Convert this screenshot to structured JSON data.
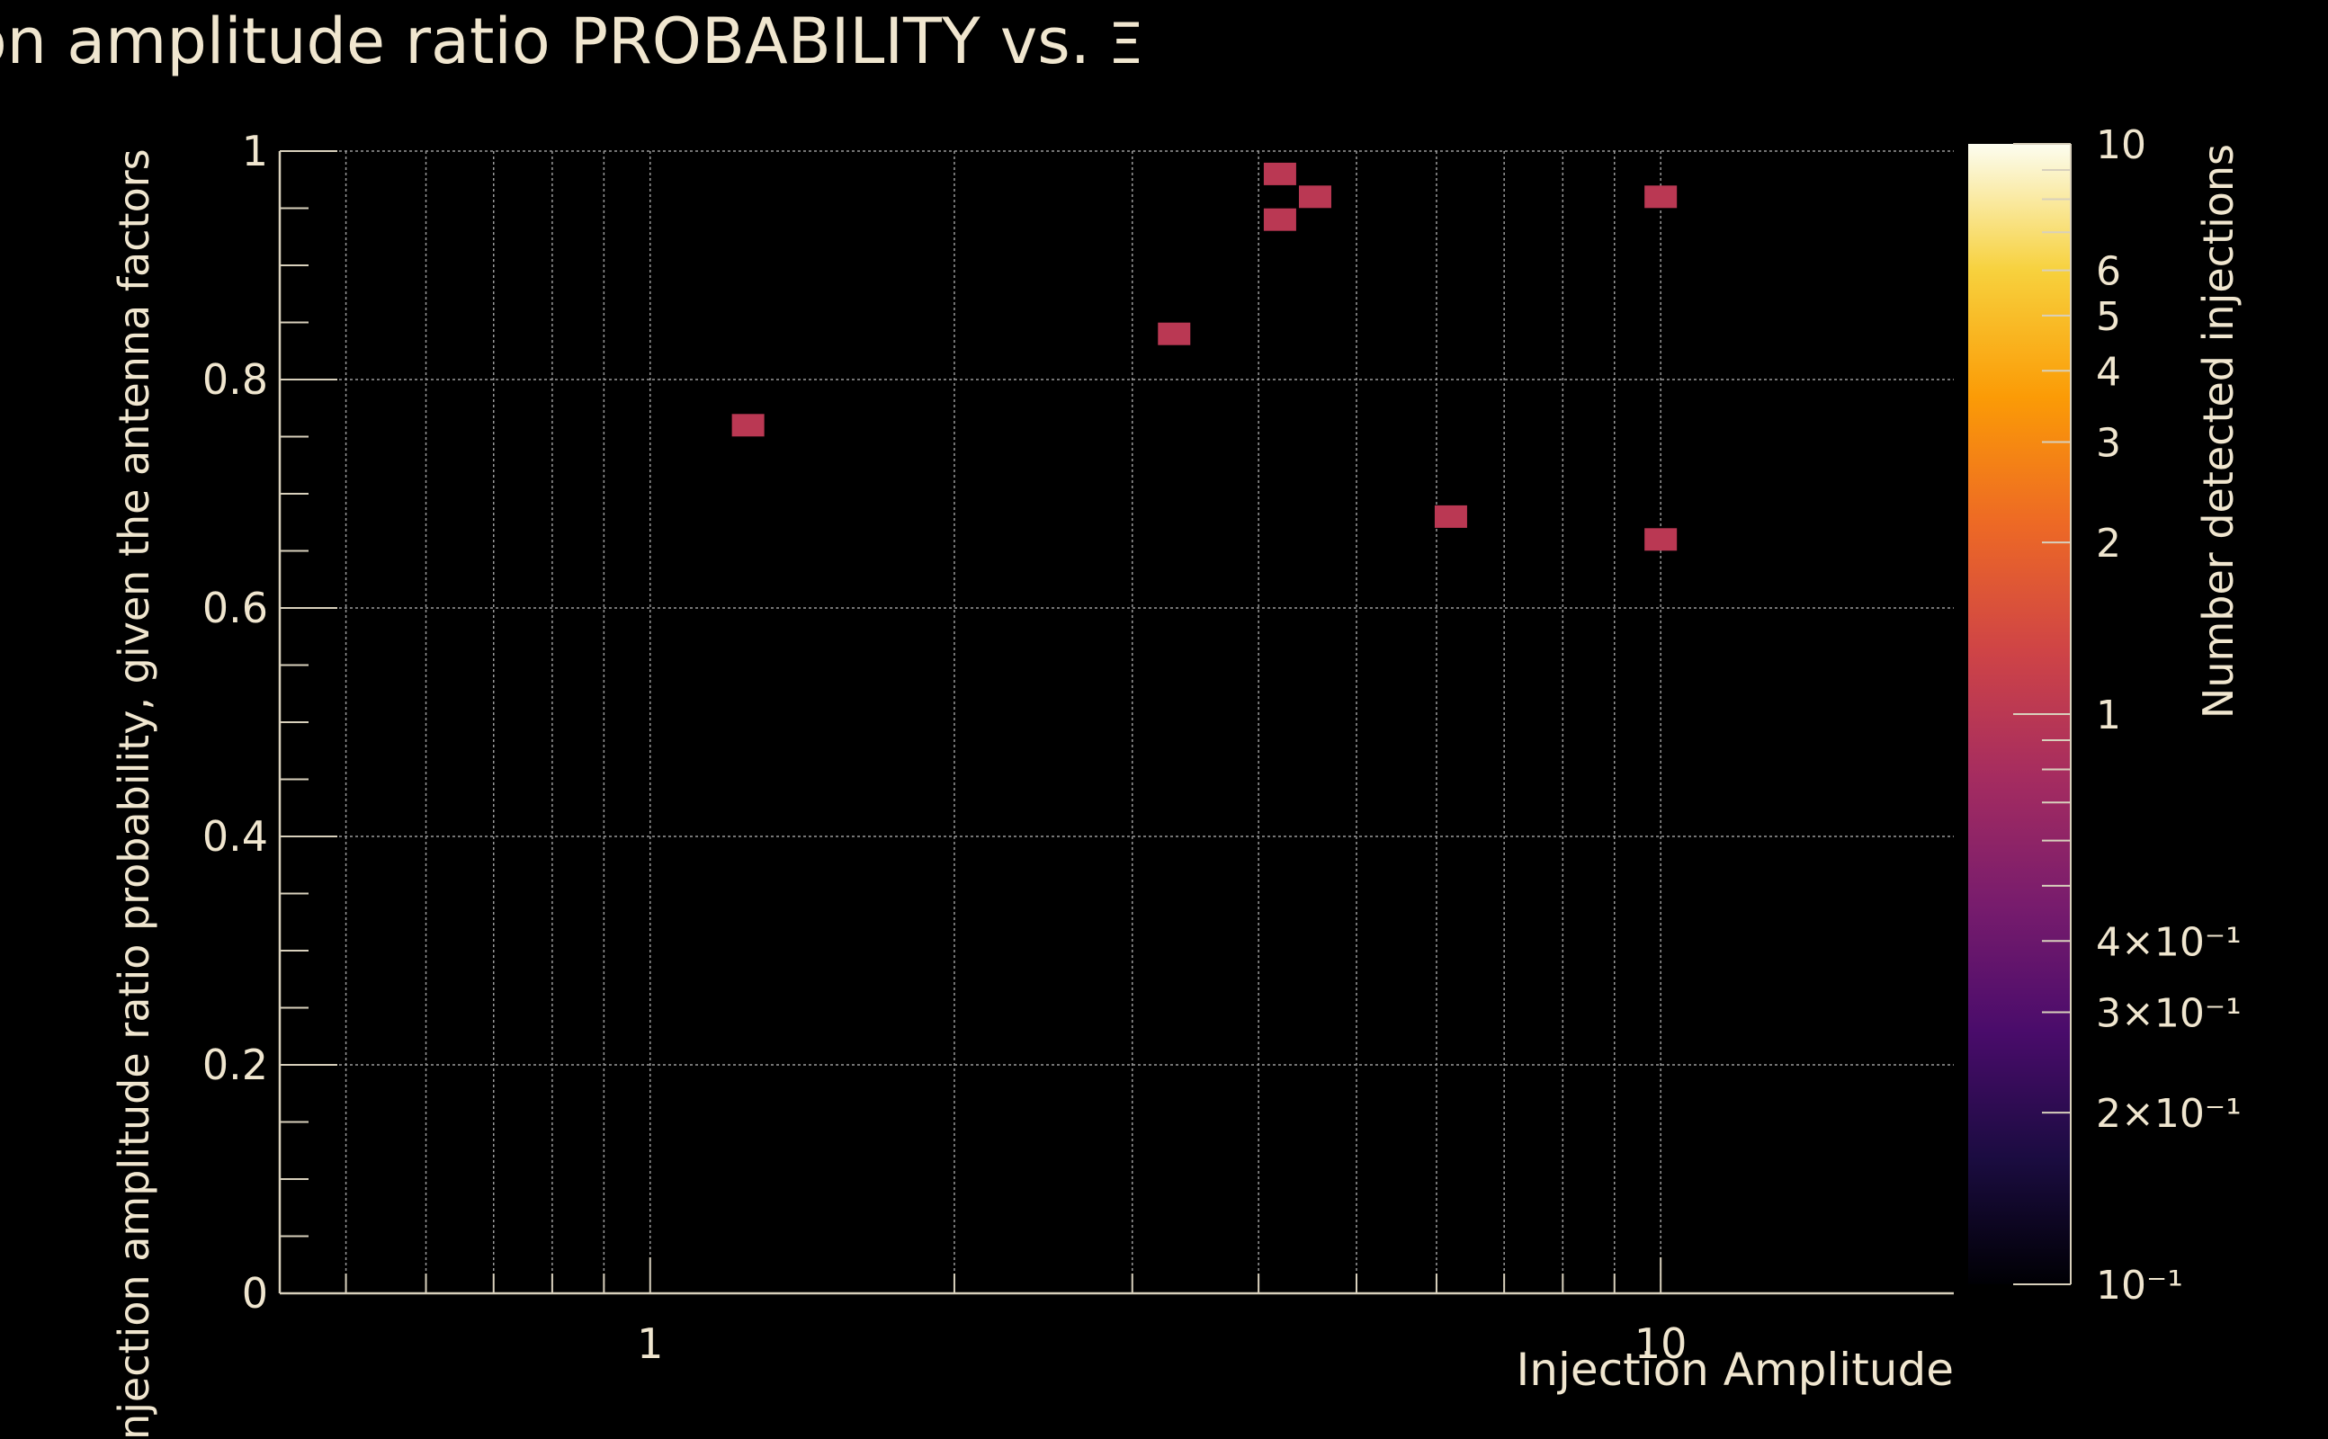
{
  "chart_data": {
    "type": "heatmap",
    "title": "Injection amplitude ratio PROBABILITY vs.",
    "title_symbol": "Ξ",
    "xlabel": "Injection Amplitude",
    "ylabel": "Injection amplitude ratio probability, given the antenna factors",
    "zlabel": "Number detected injections",
    "x_scale": "log",
    "xlim": [
      0.43,
      19.5
    ],
    "ylim": [
      0,
      1
    ],
    "z_scale": "log",
    "zlim": [
      0.1,
      10
    ],
    "grid": true,
    "x_tick_labels": [
      {
        "value": 1,
        "label": "1"
      },
      {
        "value": 10,
        "label": "10"
      }
    ],
    "y_tick_labels": [
      {
        "value": 0,
        "label": "0"
      },
      {
        "value": 0.2,
        "label": "0.2"
      },
      {
        "value": 0.4,
        "label": "0.4"
      },
      {
        "value": 0.6,
        "label": "0.6"
      },
      {
        "value": 0.8,
        "label": "0.8"
      },
      {
        "value": 1,
        "label": "1"
      }
    ],
    "z_tick_labels": [
      {
        "value": 10,
        "label": "10"
      },
      {
        "value": 6,
        "label": "6"
      },
      {
        "value": 5,
        "label": "5"
      },
      {
        "value": 4,
        "label": "4"
      },
      {
        "value": 3,
        "label": "3"
      },
      {
        "value": 2,
        "label": "2"
      },
      {
        "value": 1,
        "label": "1"
      },
      {
        "value": 0.4,
        "label": "4×10⁻¹"
      },
      {
        "value": 0.3,
        "label": "3×10⁻¹"
      },
      {
        "value": 0.2,
        "label": "2×10⁻¹"
      },
      {
        "value": 0.1,
        "label": "10⁻¹"
      }
    ],
    "cells": [
      {
        "x": 1.25,
        "y": 0.76,
        "z": 1
      },
      {
        "x": 3.3,
        "y": 0.84,
        "z": 1
      },
      {
        "x": 4.2,
        "y": 0.98,
        "z": 1
      },
      {
        "x": 4.2,
        "y": 0.94,
        "z": 1
      },
      {
        "x": 4.55,
        "y": 0.96,
        "z": 1
      },
      {
        "x": 6.2,
        "y": 0.68,
        "z": 1
      },
      {
        "x": 10.0,
        "y": 0.96,
        "z": 1
      },
      {
        "x": 10.0,
        "y": 0.66,
        "z": 1
      }
    ],
    "colors": {
      "background": "#000000",
      "text": "#f0e6cf",
      "axis": "#d8d0bc",
      "grid": "#9a9a9a",
      "colormap": [
        "#000004",
        "#1b0c41",
        "#4a0c6b",
        "#781c6d",
        "#a52c60",
        "#cf4446",
        "#ed6925",
        "#fb9b06",
        "#f7d13d",
        "#fcfdf0"
      ]
    }
  }
}
